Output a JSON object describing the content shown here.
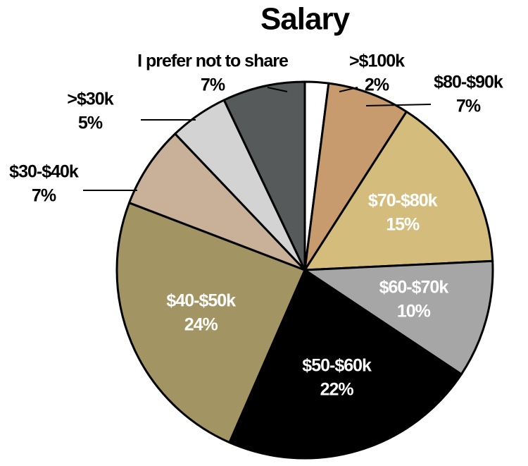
{
  "chart_data": {
    "type": "pie",
    "title": "Salary",
    "categories": [
      ">$100k",
      "$80-$90k",
      "$70-$80k",
      "$60-$70k",
      "$50-$60k",
      "$40-$50k",
      "$30-$40k",
      ">$30k",
      "I prefer not to share"
    ],
    "values": [
      2,
      7,
      15,
      10,
      22,
      24,
      7,
      5,
      7
    ],
    "value_labels": [
      "2%",
      "7%",
      "15%",
      "10%",
      "22%",
      "24%",
      "7%",
      "5%",
      "7%"
    ],
    "colors": [
      "#ffffff",
      "#c89b6e",
      "#d4bd7c",
      "#a6a6a6",
      "#000000",
      "#a39563",
      "#c9b098",
      "#d3d3d3",
      "#575a5a"
    ]
  }
}
